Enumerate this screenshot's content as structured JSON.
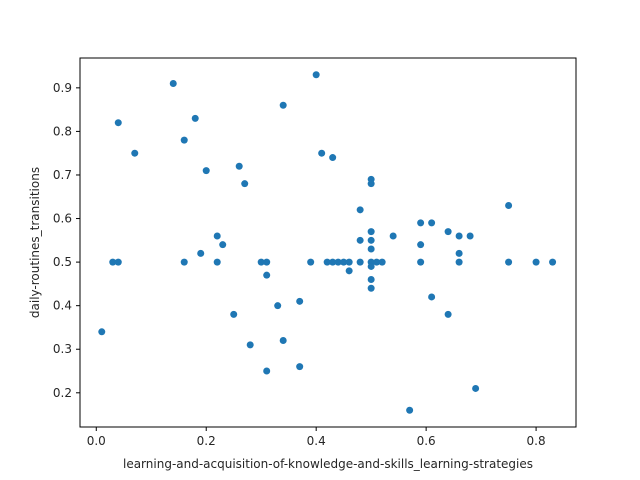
{
  "chart_data": {
    "type": "scatter",
    "xlabel": "learning-and-acquisition-of-knowledge-and-skills_learning-strategies",
    "ylabel": "daily-routines_transitions",
    "xlim": [
      -0.0296,
      0.8726
    ],
    "ylim": [
      0.1215,
      0.9685
    ],
    "xticks": [
      0.0,
      0.2,
      0.4,
      0.6,
      0.8
    ],
    "xtick_labels": [
      "0.0",
      "0.2",
      "0.4",
      "0.6",
      "0.8"
    ],
    "yticks": [
      0.2,
      0.3,
      0.4,
      0.5,
      0.6,
      0.7,
      0.8,
      0.9
    ],
    "ytick_labels": [
      "0.2",
      "0.3",
      "0.4",
      "0.5",
      "0.6",
      "0.7",
      "0.8",
      "0.9"
    ],
    "grid": false,
    "marker_color": "#1f77b4",
    "points": [
      {
        "x": 0.01,
        "y": 0.34
      },
      {
        "x": 0.03,
        "y": 0.5
      },
      {
        "x": 0.04,
        "y": 0.5
      },
      {
        "x": 0.04,
        "y": 0.82
      },
      {
        "x": 0.07,
        "y": 0.75
      },
      {
        "x": 0.14,
        "y": 0.91
      },
      {
        "x": 0.16,
        "y": 0.78
      },
      {
        "x": 0.16,
        "y": 0.5
      },
      {
        "x": 0.18,
        "y": 0.83
      },
      {
        "x": 0.19,
        "y": 0.52
      },
      {
        "x": 0.2,
        "y": 0.71
      },
      {
        "x": 0.22,
        "y": 0.56
      },
      {
        "x": 0.22,
        "y": 0.5
      },
      {
        "x": 0.23,
        "y": 0.54
      },
      {
        "x": 0.25,
        "y": 0.38
      },
      {
        "x": 0.26,
        "y": 0.72
      },
      {
        "x": 0.27,
        "y": 0.68
      },
      {
        "x": 0.28,
        "y": 0.31
      },
      {
        "x": 0.3,
        "y": 0.5
      },
      {
        "x": 0.31,
        "y": 0.5
      },
      {
        "x": 0.31,
        "y": 0.47
      },
      {
        "x": 0.31,
        "y": 0.25
      },
      {
        "x": 0.33,
        "y": 0.4
      },
      {
        "x": 0.34,
        "y": 0.86
      },
      {
        "x": 0.34,
        "y": 0.32
      },
      {
        "x": 0.37,
        "y": 0.41
      },
      {
        "x": 0.37,
        "y": 0.26
      },
      {
        "x": 0.39,
        "y": 0.5
      },
      {
        "x": 0.4,
        "y": 0.93
      },
      {
        "x": 0.41,
        "y": 0.75
      },
      {
        "x": 0.42,
        "y": 0.5
      },
      {
        "x": 0.43,
        "y": 0.74
      },
      {
        "x": 0.43,
        "y": 0.5
      },
      {
        "x": 0.44,
        "y": 0.5
      },
      {
        "x": 0.45,
        "y": 0.5
      },
      {
        "x": 0.46,
        "y": 0.5
      },
      {
        "x": 0.46,
        "y": 0.48
      },
      {
        "x": 0.48,
        "y": 0.62
      },
      {
        "x": 0.48,
        "y": 0.55
      },
      {
        "x": 0.48,
        "y": 0.5
      },
      {
        "x": 0.5,
        "y": 0.69
      },
      {
        "x": 0.5,
        "y": 0.68
      },
      {
        "x": 0.5,
        "y": 0.57
      },
      {
        "x": 0.5,
        "y": 0.55
      },
      {
        "x": 0.5,
        "y": 0.53
      },
      {
        "x": 0.5,
        "y": 0.5
      },
      {
        "x": 0.5,
        "y": 0.49
      },
      {
        "x": 0.5,
        "y": 0.46
      },
      {
        "x": 0.5,
        "y": 0.44
      },
      {
        "x": 0.51,
        "y": 0.5
      },
      {
        "x": 0.52,
        "y": 0.5
      },
      {
        "x": 0.54,
        "y": 0.56
      },
      {
        "x": 0.57,
        "y": 0.16
      },
      {
        "x": 0.59,
        "y": 0.59
      },
      {
        "x": 0.59,
        "y": 0.54
      },
      {
        "x": 0.59,
        "y": 0.5
      },
      {
        "x": 0.61,
        "y": 0.59
      },
      {
        "x": 0.61,
        "y": 0.42
      },
      {
        "x": 0.64,
        "y": 0.57
      },
      {
        "x": 0.64,
        "y": 0.38
      },
      {
        "x": 0.66,
        "y": 0.56
      },
      {
        "x": 0.66,
        "y": 0.52
      },
      {
        "x": 0.66,
        "y": 0.5
      },
      {
        "x": 0.68,
        "y": 0.56
      },
      {
        "x": 0.69,
        "y": 0.21
      },
      {
        "x": 0.75,
        "y": 0.63
      },
      {
        "x": 0.75,
        "y": 0.5
      },
      {
        "x": 0.8,
        "y": 0.5
      },
      {
        "x": 0.83,
        "y": 0.5
      }
    ]
  }
}
